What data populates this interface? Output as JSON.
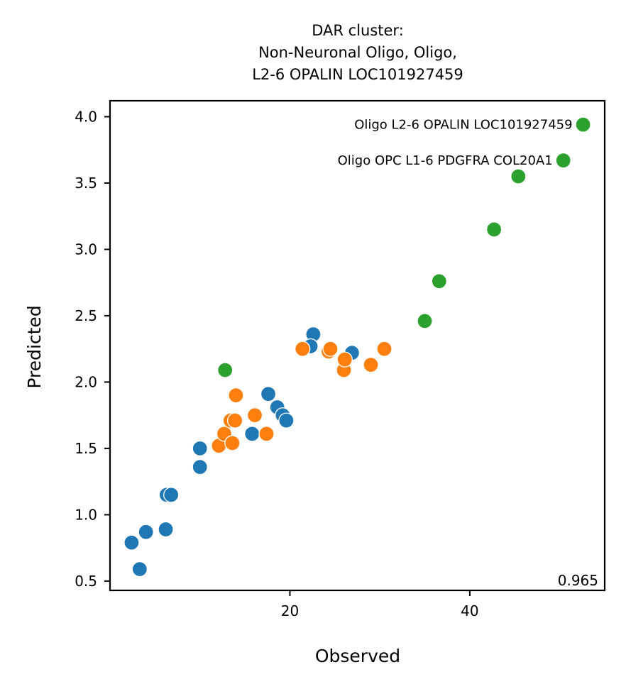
{
  "chart_data": {
    "type": "scatter",
    "title_lines": [
      "DAR cluster:",
      "Non-Neuronal Oligo, Oligo,",
      "L2-6 OPALIN LOC101927459"
    ],
    "xlabel": "Observed",
    "ylabel": "Predicted",
    "xlim": [
      0,
      55
    ],
    "ylim": [
      0.43,
      4.12
    ],
    "xticks": [
      20,
      40
    ],
    "xtick_labels": [
      "20",
      "40"
    ],
    "yticks": [
      0.5,
      1.0,
      1.5,
      2.0,
      2.5,
      3.0,
      3.5,
      4.0
    ],
    "ytick_labels": [
      "0.5",
      "1.0",
      "1.5",
      "2.0",
      "2.5",
      "3.0",
      "3.5",
      "4.0"
    ],
    "grid": false,
    "corner_text": "0.965",
    "colors": {
      "blue": "#1f77b4",
      "orange": "#ff7f0e",
      "green": "#2ca02c"
    },
    "series": [
      {
        "color": "#1f77b4",
        "points": [
          [
            2.4,
            0.79
          ],
          [
            3.3,
            0.59
          ],
          [
            4.0,
            0.87
          ],
          [
            6.2,
            0.89
          ],
          [
            6.3,
            1.15
          ],
          [
            6.8,
            1.15
          ],
          [
            10.0,
            1.5
          ],
          [
            10.0,
            1.36
          ],
          [
            15.8,
            1.61
          ],
          [
            17.6,
            1.91
          ],
          [
            18.6,
            1.81
          ],
          [
            19.2,
            1.75
          ],
          [
            19.6,
            1.71
          ],
          [
            22.6,
            2.36
          ],
          [
            22.3,
            2.27
          ],
          [
            26.9,
            2.22
          ]
        ]
      },
      {
        "color": "#ff7f0e",
        "points": [
          [
            12.1,
            1.52
          ],
          [
            12.7,
            1.61
          ],
          [
            13.6,
            1.54
          ],
          [
            13.4,
            1.71
          ],
          [
            13.9,
            1.71
          ],
          [
            14.0,
            1.9
          ],
          [
            16.1,
            1.75
          ],
          [
            17.4,
            1.61
          ],
          [
            21.4,
            2.25
          ],
          [
            24.3,
            2.23
          ],
          [
            24.5,
            2.25
          ],
          [
            26.0,
            2.09
          ],
          [
            26.1,
            2.17
          ],
          [
            29.0,
            2.13
          ],
          [
            30.5,
            2.25
          ]
        ]
      },
      {
        "color": "#2ca02c",
        "points": [
          [
            12.8,
            2.09
          ],
          [
            35.0,
            2.46
          ],
          [
            36.6,
            2.76
          ],
          [
            42.7,
            3.15
          ],
          [
            45.4,
            3.55
          ],
          [
            50.4,
            3.67
          ],
          [
            52.6,
            3.94
          ]
        ]
      }
    ],
    "annotations": [
      {
        "text": "Oligo L2-6 OPALIN LOC101927459",
        "x": 52.6,
        "y": 3.94
      },
      {
        "text": "Oligo OPC L1-6 PDGFRA COL20A1",
        "x": 50.4,
        "y": 3.67
      }
    ]
  }
}
